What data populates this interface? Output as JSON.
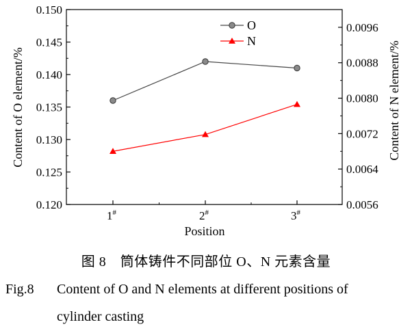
{
  "chart_data": {
    "type": "line",
    "categories": [
      "1#",
      "2#",
      "3#"
    ],
    "category_display": [
      {
        "main": "1",
        "sup": "#"
      },
      {
        "main": "2",
        "sup": "#"
      },
      {
        "main": "3",
        "sup": "#"
      }
    ],
    "xlabel": "Position",
    "ylabel_left": "Content of O element/%",
    "ylabel_right": "Content of N element/%",
    "ylim_left": [
      0.12,
      0.15
    ],
    "ylim_right": [
      0.0056,
      0.01
    ],
    "yticks_left": [
      "0.120",
      "0.125",
      "0.130",
      "0.135",
      "0.140",
      "0.145",
      "0.150"
    ],
    "yticks_right": [
      "0.0056",
      "0.0064",
      "0.0072",
      "0.0080",
      "0.0088",
      "0.0096"
    ],
    "series": [
      {
        "name": "O",
        "axis": "left",
        "values": [
          0.136,
          0.142,
          0.141
        ],
        "color": "#444444",
        "marker": "circle"
      },
      {
        "name": "N",
        "axis": "right",
        "values": [
          0.0068,
          0.00718,
          0.00786
        ],
        "color": "#ff0000",
        "marker": "triangle"
      }
    ],
    "legend_position": "top-center",
    "grid": false
  },
  "caption": {
    "chinese": "图 8　筒体铸件不同部位 O、N 元素含量",
    "english_label": "Fig.8",
    "english_line1": "Content of O and N elements at different positions of",
    "english_line2": "cylinder casting"
  }
}
